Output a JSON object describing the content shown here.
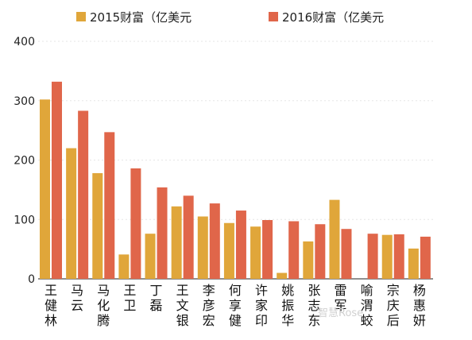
{
  "chart_data": {
    "type": "bar",
    "title": "",
    "xlabel": "",
    "ylabel": "",
    "ylim": [
      0,
      400
    ],
    "yticks": [
      "0",
      "100",
      "200",
      "300",
      "400"
    ],
    "grid": true,
    "legend_position": "top",
    "categories": [
      "王健林",
      "马云",
      "马化腾",
      "王卫",
      "丁磊",
      "王文银",
      "李彦宏",
      "何享健",
      "许家印",
      "姚振华",
      "张志东",
      "雷军",
      "喻渭蛟",
      "宗庆后",
      "杨惠妍"
    ],
    "series": [
      {
        "name": "2015财富（亿美元",
        "color": "#e0a63a",
        "values": [
          302,
          220,
          178,
          41,
          76,
          122,
          105,
          94,
          88,
          10,
          63,
          133,
          0,
          74,
          51
        ]
      },
      {
        "name": "2016财富（亿美元",
        "color": "#e0664a",
        "values": [
          332,
          283,
          247,
          186,
          154,
          140,
          127,
          115,
          99,
          97,
          92,
          84,
          76,
          75,
          71
        ]
      }
    ]
  },
  "watermark": "智慧Rose"
}
